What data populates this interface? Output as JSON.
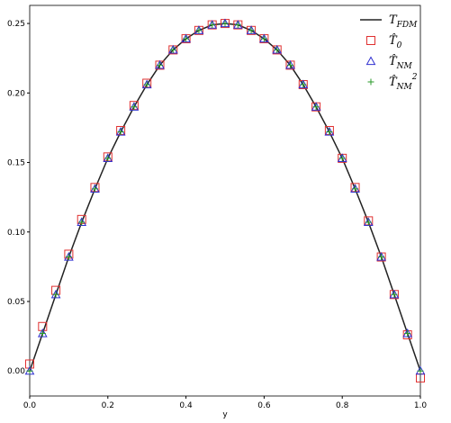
{
  "chart_data": {
    "type": "line",
    "xlabel": "y",
    "x": [
      0,
      0.033,
      0.067,
      0.1,
      0.133,
      0.167,
      0.2,
      0.233,
      0.267,
      0.3,
      0.333,
      0.367,
      0.4,
      0.433,
      0.467,
      0.5,
      0.533,
      0.567,
      0.6,
      0.633,
      0.667,
      0.7,
      0.733,
      0.767,
      0.8,
      0.833,
      0.867,
      0.9,
      0.933,
      0.967,
      1
    ],
    "series": [
      {
        "name": "T_FDM",
        "color": "#222222",
        "marker": "none",
        "values": [
          0,
          0.027,
          0.055,
          0.082,
          0.107,
          0.131,
          0.153,
          0.172,
          0.19,
          0.206,
          0.22,
          0.231,
          0.239,
          0.245,
          0.249,
          0.25,
          0.249,
          0.245,
          0.239,
          0.231,
          0.22,
          0.206,
          0.19,
          0.172,
          0.153,
          0.131,
          0.107,
          0.082,
          0.055,
          0.027,
          0
        ]
      },
      {
        "name": "T̂_0",
        "color": "#e03030",
        "marker": "square",
        "values": [
          0.005,
          0.032,
          0.058,
          0.084,
          0.109,
          0.132,
          0.154,
          0.173,
          0.191,
          0.207,
          0.22,
          0.231,
          0.239,
          0.245,
          0.249,
          0.25,
          0.249,
          0.245,
          0.239,
          0.231,
          0.22,
          0.206,
          0.19,
          0.173,
          0.153,
          0.132,
          0.108,
          0.082,
          0.055,
          0.026,
          -0.005
        ]
      },
      {
        "name": "T̂_NM",
        "color": "#3030d0",
        "marker": "triangle",
        "values": [
          0,
          0.027,
          0.055,
          0.082,
          0.107,
          0.131,
          0.153,
          0.172,
          0.19,
          0.206,
          0.22,
          0.231,
          0.239,
          0.245,
          0.249,
          0.25,
          0.249,
          0.245,
          0.239,
          0.231,
          0.22,
          0.206,
          0.19,
          0.172,
          0.153,
          0.131,
          0.107,
          0.082,
          0.055,
          0.027,
          0
        ]
      },
      {
        "name": "T̂_NM^2",
        "color": "#2a9a2a",
        "marker": "plus",
        "values": [
          0,
          0.027,
          0.055,
          0.082,
          0.107,
          0.131,
          0.153,
          0.172,
          0.19,
          0.206,
          0.22,
          0.231,
          0.239,
          0.245,
          0.249,
          0.25,
          0.249,
          0.245,
          0.239,
          0.231,
          0.22,
          0.206,
          0.19,
          0.172,
          0.153,
          0.131,
          0.107,
          0.082,
          0.055,
          0.027,
          0
        ]
      }
    ],
    "xlim": [
      0,
      1
    ],
    "ylim": [
      -0.018,
      0.263
    ],
    "xticks": [
      {
        "value": 0,
        "label": "0.0"
      },
      {
        "value": 0.2,
        "label": "0.2"
      },
      {
        "value": 0.4,
        "label": "0.4"
      },
      {
        "value": 0.6,
        "label": "0.6"
      },
      {
        "value": 0.8,
        "label": "0.8"
      },
      {
        "value": 1,
        "label": "1.0"
      }
    ],
    "yticks": [
      {
        "value": 0,
        "label": "0.00"
      },
      {
        "value": 0.05,
        "label": "0.05"
      },
      {
        "value": 0.1,
        "label": "0.10"
      },
      {
        "value": 0.15,
        "label": "0.15"
      },
      {
        "value": 0.2,
        "label": "0.20"
      },
      {
        "value": 0.25,
        "label": "0.25"
      }
    ],
    "grid": false,
    "legend": "upper right"
  }
}
